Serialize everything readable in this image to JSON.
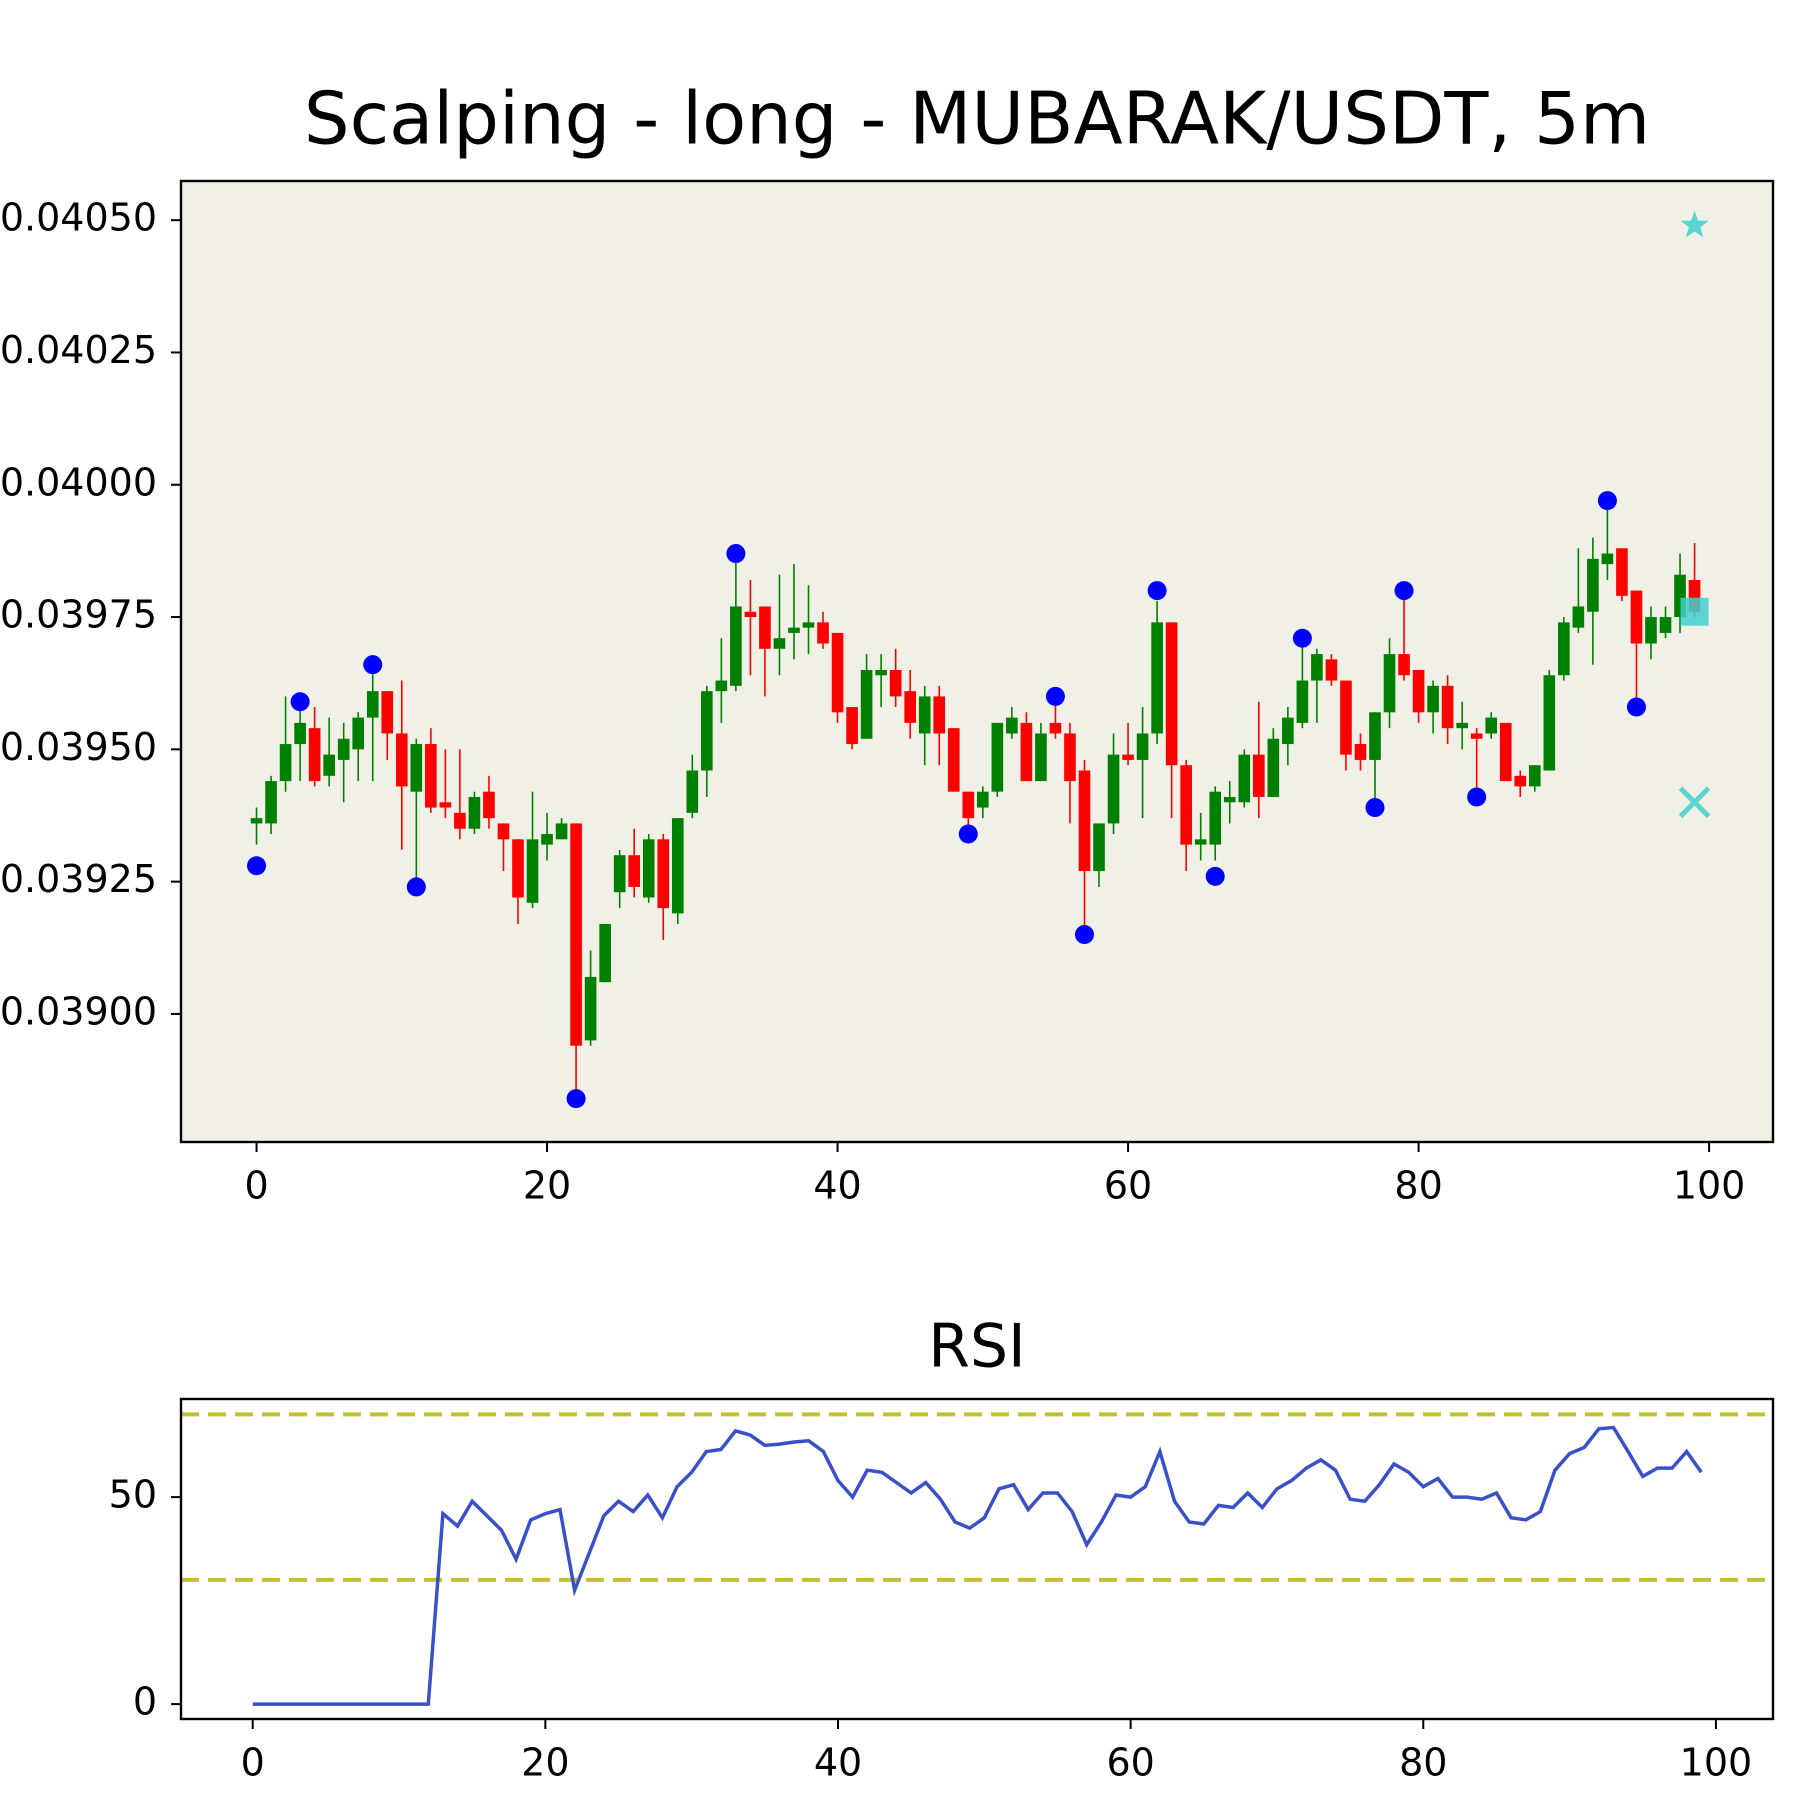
{
  "chart_data": [
    {
      "type": "candlestick",
      "title": "Scalping - long - MUBARAK/USDT, 5m",
      "facecolor": "#f1f0e6",
      "up_color": "green",
      "down_color": "red",
      "x": [
        0,
        1,
        2,
        3,
        4,
        5,
        6,
        7,
        8,
        9,
        10,
        11,
        12,
        13,
        14,
        15,
        16,
        17,
        18,
        19,
        20,
        21,
        22,
        23,
        24,
        25,
        26,
        27,
        28,
        29,
        30,
        31,
        32,
        33,
        34,
        35,
        36,
        37,
        38,
        39,
        40,
        41,
        42,
        43,
        44,
        45,
        46,
        47,
        48,
        49,
        50,
        51,
        52,
        53,
        54,
        55,
        56,
        57,
        58,
        59,
        60,
        61,
        62,
        63,
        64,
        65,
        66,
        67,
        68,
        69,
        70,
        71,
        72,
        73,
        74,
        75,
        76,
        77,
        78,
        79,
        80,
        81,
        82,
        83,
        84,
        85,
        86,
        87,
        88,
        89,
        90,
        91,
        92,
        93,
        94,
        95,
        96,
        97,
        98,
        99
      ],
      "open": [
        0.03936,
        0.03936,
        0.03944,
        0.03951,
        0.03954,
        0.03945,
        0.03948,
        0.0395,
        0.03956,
        0.03961,
        0.03953,
        0.03942,
        0.03951,
        0.0394,
        0.03938,
        0.03935,
        0.03942,
        0.03936,
        0.03933,
        0.03921,
        0.03932,
        0.03933,
        0.03936,
        0.03895,
        0.03906,
        0.03923,
        0.0393,
        0.03922,
        0.03933,
        0.03919,
        0.03938,
        0.03946,
        0.03961,
        0.03962,
        0.03976,
        0.03977,
        0.03969,
        0.03972,
        0.03973,
        0.03974,
        0.03972,
        0.03958,
        0.03952,
        0.03964,
        0.03965,
        0.03961,
        0.03953,
        0.0396,
        0.03954,
        0.03942,
        0.03939,
        0.03942,
        0.03953,
        0.03955,
        0.03944,
        0.03955,
        0.03953,
        0.03946,
        0.03927,
        0.03936,
        0.03949,
        0.03948,
        0.03953,
        0.03974,
        0.03947,
        0.03932,
        0.03932,
        0.0394,
        0.0394,
        0.03949,
        0.03941,
        0.03951,
        0.03955,
        0.03963,
        0.03967,
        0.03963,
        0.03951,
        0.03948,
        0.03957,
        0.03968,
        0.03965,
        0.03957,
        0.03962,
        0.03954,
        0.03953,
        0.03953,
        0.03955,
        0.03945,
        0.03943,
        0.03946,
        0.03964,
        0.03973,
        0.03976,
        0.03985,
        0.03988,
        0.0398,
        0.0397,
        0.03972,
        0.03975,
        0.03982
      ],
      "high": [
        0.03939,
        0.03945,
        0.0396,
        0.03959,
        0.03958,
        0.03956,
        0.03955,
        0.03957,
        0.03966,
        0.03961,
        0.03963,
        0.03952,
        0.03954,
        0.0395,
        0.0395,
        0.03942,
        0.03945,
        0.03936,
        0.03933,
        0.03942,
        0.03938,
        0.03937,
        0.03936,
        0.03912,
        0.03917,
        0.03931,
        0.03935,
        0.03934,
        0.03934,
        0.03937,
        0.03949,
        0.03962,
        0.03971,
        0.03987,
        0.03982,
        0.03977,
        0.03983,
        0.03985,
        0.03981,
        0.03976,
        0.03972,
        0.03958,
        0.03968,
        0.03968,
        0.03969,
        0.03965,
        0.03962,
        0.03962,
        0.03954,
        0.03942,
        0.03943,
        0.03955,
        0.03958,
        0.03957,
        0.03955,
        0.0396,
        0.03955,
        0.03948,
        0.03936,
        0.03953,
        0.03955,
        0.03958,
        0.03978,
        0.03974,
        0.03948,
        0.03938,
        0.03943,
        0.03944,
        0.0395,
        0.03959,
        0.03954,
        0.03958,
        0.0397,
        0.03969,
        0.03968,
        0.03963,
        0.03953,
        0.03957,
        0.03971,
        0.0398,
        0.03965,
        0.03963,
        0.03964,
        0.03959,
        0.03954,
        0.03957,
        0.03955,
        0.03946,
        0.03947,
        0.03965,
        0.03975,
        0.03988,
        0.0399,
        0.03997,
        0.03988,
        0.0398,
        0.03977,
        0.03977,
        0.03987,
        0.03989
      ],
      "low": [
        0.03932,
        0.03934,
        0.03942,
        0.03944,
        0.03943,
        0.03943,
        0.0394,
        0.03944,
        0.03944,
        0.03948,
        0.03931,
        0.03925,
        0.03938,
        0.03937,
        0.03933,
        0.03934,
        0.03935,
        0.03927,
        0.03917,
        0.0392,
        0.03929,
        0.03933,
        0.03885,
        0.03894,
        0.03906,
        0.0392,
        0.03922,
        0.03921,
        0.03914,
        0.03917,
        0.03937,
        0.03941,
        0.03955,
        0.03961,
        0.03964,
        0.0396,
        0.03964,
        0.03967,
        0.03968,
        0.03969,
        0.03955,
        0.0395,
        0.03952,
        0.03958,
        0.03958,
        0.03952,
        0.03947,
        0.03947,
        0.03942,
        0.03934,
        0.03937,
        0.03941,
        0.03952,
        0.03944,
        0.03944,
        0.03952,
        0.03936,
        0.03915,
        0.03924,
        0.03934,
        0.03947,
        0.03937,
        0.03951,
        0.03937,
        0.03927,
        0.03929,
        0.03929,
        0.03936,
        0.03939,
        0.03937,
        0.03941,
        0.03947,
        0.03954,
        0.03955,
        0.03962,
        0.03946,
        0.03946,
        0.0394,
        0.03954,
        0.03963,
        0.03955,
        0.03953,
        0.03951,
        0.0395,
        0.03942,
        0.03952,
        0.03944,
        0.03941,
        0.03942,
        0.03946,
        0.03963,
        0.03972,
        0.03966,
        0.03982,
        0.03978,
        0.03959,
        0.03967,
        0.03971,
        0.03972,
        0.03975
      ],
      "close": [
        0.03937,
        0.03944,
        0.03951,
        0.03955,
        0.03944,
        0.03949,
        0.03952,
        0.03956,
        0.03961,
        0.03953,
        0.03943,
        0.03951,
        0.03939,
        0.03939,
        0.03935,
        0.03941,
        0.03937,
        0.03933,
        0.03922,
        0.03933,
        0.03934,
        0.03936,
        0.03894,
        0.03907,
        0.03917,
        0.0393,
        0.03924,
        0.03933,
        0.0392,
        0.03937,
        0.03946,
        0.03961,
        0.03963,
        0.03977,
        0.03975,
        0.03969,
        0.03971,
        0.03973,
        0.03974,
        0.0397,
        0.03957,
        0.03951,
        0.03965,
        0.03965,
        0.0396,
        0.03955,
        0.0396,
        0.03953,
        0.03942,
        0.03937,
        0.03942,
        0.03955,
        0.03956,
        0.03944,
        0.03953,
        0.03953,
        0.03944,
        0.03927,
        0.03936,
        0.03949,
        0.03948,
        0.03953,
        0.03974,
        0.03947,
        0.03932,
        0.03933,
        0.03942,
        0.03941,
        0.03949,
        0.03941,
        0.03952,
        0.03956,
        0.03963,
        0.03968,
        0.03963,
        0.03949,
        0.03948,
        0.03957,
        0.03968,
        0.03964,
        0.03957,
        0.03962,
        0.03954,
        0.03955,
        0.03952,
        0.03956,
        0.03944,
        0.03943,
        0.03947,
        0.03964,
        0.03974,
        0.03977,
        0.03986,
        0.03987,
        0.03979,
        0.0397,
        0.03975,
        0.03975,
        0.03983,
        0.03976
      ],
      "pivots": {
        "color": "blue",
        "x": [
          0,
          3,
          8,
          11,
          22,
          33,
          49,
          55,
          57,
          62,
          66,
          72,
          77,
          79,
          84,
          93,
          95
        ],
        "y": [
          0.03928,
          0.03959,
          0.03966,
          0.03924,
          0.03884,
          0.03987,
          0.03934,
          0.0396,
          0.03915,
          0.0398,
          0.03926,
          0.03971,
          0.03939,
          0.0398,
          0.03941,
          0.03997,
          0.03958
        ]
      },
      "signals": [
        {
          "marker": "star",
          "x": 99,
          "y": 0.04049,
          "color": "#40d0d0"
        },
        {
          "marker": "square",
          "x": 99,
          "y": 0.03976,
          "color": "#40d0d0"
        },
        {
          "marker": "x",
          "x": 99,
          "y": 0.0394,
          "color": "#40d0d0"
        }
      ],
      "xlim": [
        -5.2,
        104.4
      ],
      "xticks": [
        0,
        20,
        40,
        60,
        80,
        100
      ],
      "ylim": [
        0.038758,
        0.040574
      ],
      "yticks": [
        {
          "value": 0.039,
          "label": "0.03900"
        },
        {
          "value": 0.03925,
          "label": "0.03925"
        },
        {
          "value": 0.0395,
          "label": "0.03950"
        },
        {
          "value": 0.03975,
          "label": "0.03975"
        },
        {
          "value": 0.04,
          "label": "0.04000"
        },
        {
          "value": 0.04025,
          "label": "0.04025"
        },
        {
          "value": 0.0405,
          "label": "0.04050"
        }
      ]
    },
    {
      "type": "line",
      "title": "RSI",
      "facecolor": "#ffffff",
      "color": "#3a50c8",
      "x": [
        0,
        1,
        2,
        3,
        4,
        5,
        6,
        7,
        8,
        9,
        10,
        11,
        12,
        13,
        14,
        15,
        16,
        17,
        18,
        19,
        20,
        21,
        22,
        23,
        24,
        25,
        26,
        27,
        28,
        29,
        30,
        31,
        32,
        33,
        34,
        35,
        36,
        37,
        38,
        39,
        40,
        41,
        42,
        43,
        44,
        45,
        46,
        47,
        48,
        49,
        50,
        51,
        52,
        53,
        54,
        55,
        56,
        57,
        58,
        59,
        60,
        61,
        62,
        63,
        64,
        65,
        66,
        67,
        68,
        69,
        70,
        71,
        72,
        73,
        74,
        75,
        76,
        77,
        78,
        79,
        80,
        81,
        82,
        83,
        84,
        85,
        86,
        87,
        88,
        89,
        90,
        91,
        92,
        93,
        94,
        95,
        96,
        97,
        98,
        99
      ],
      "values": [
        0,
        0,
        0,
        0,
        0,
        0,
        0,
        0,
        0,
        0,
        0,
        0,
        0,
        46,
        43,
        49,
        45.5,
        42,
        35,
        44.5,
        46,
        47,
        27.5,
        36.5,
        45.5,
        49,
        46.5,
        50.5,
        45,
        52.5,
        56,
        61,
        61.5,
        66,
        65,
        62.5,
        62.8,
        63.3,
        63.6,
        61,
        54,
        50,
        56.5,
        56,
        53.5,
        51,
        53.5,
        49.5,
        44,
        42.5,
        45,
        52,
        53,
        47,
        51,
        51,
        46.5,
        38.5,
        44,
        50.5,
        50,
        52.5,
        61,
        49,
        44,
        43.5,
        48,
        47.5,
        51,
        47.5,
        52,
        54,
        57,
        59,
        56.5,
        49.5,
        49,
        53,
        58,
        56,
        52.5,
        54.5,
        50,
        50,
        49.5,
        51,
        45,
        44.5,
        46.5,
        56.5,
        60.5,
        62,
        66.5,
        66.8,
        61,
        55,
        57,
        57,
        61,
        56
      ],
      "hlines": [
        {
          "value": 70,
          "color": "#c4c030",
          "style": "dashed"
        },
        {
          "value": 30,
          "color": "#c4c030",
          "style": "dashed"
        }
      ],
      "xlim": [
        -4.9,
        103.9
      ],
      "xticks": [
        0,
        20,
        40,
        60,
        80,
        100
      ],
      "ylim": [
        -3.6,
        73.7
      ],
      "yticks": [
        0,
        50
      ]
    }
  ]
}
